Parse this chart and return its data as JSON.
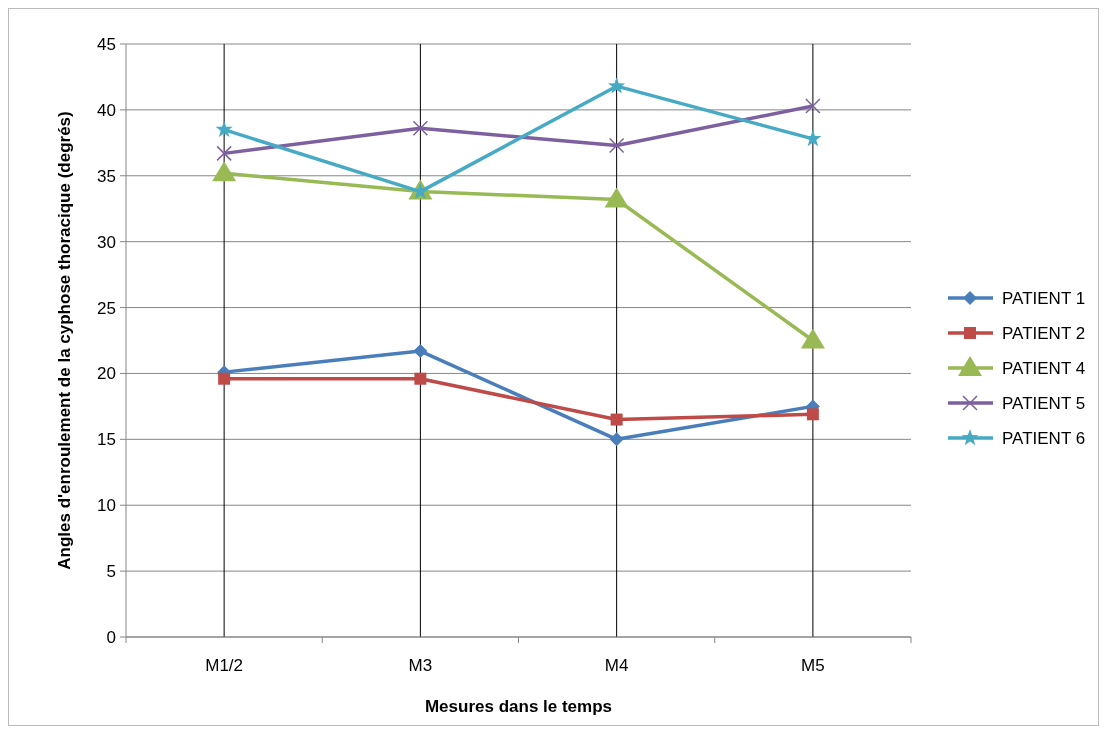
{
  "chart_data": {
    "type": "line",
    "xlabel": "Mesures dans le temps",
    "ylabel": "Angles d'enroulement de la cyphose thoracique (degrés)",
    "categories": [
      "M1/2",
      "M3",
      "M4",
      "M5"
    ],
    "ylim": [
      0,
      45
    ],
    "yticks": [
      0,
      5,
      10,
      15,
      20,
      25,
      30,
      35,
      40,
      45
    ],
    "grid": true,
    "legend": "right",
    "line_style": "solid",
    "series": [
      {
        "name": "PATIENT 1",
        "color": "#4a7ebb",
        "marker": "diamond",
        "values": [
          20.1,
          21.7,
          15.0,
          17.5
        ]
      },
      {
        "name": "PATIENT 2",
        "color": "#be4b48",
        "marker": "square",
        "values": [
          19.6,
          19.6,
          16.5,
          16.9
        ]
      },
      {
        "name": "PATIENT 4",
        "color": "#98b954",
        "marker": "triangle",
        "values": [
          35.2,
          33.8,
          33.2,
          22.5
        ]
      },
      {
        "name": "PATIENT 5",
        "color": "#7d60a0",
        "marker": "cross",
        "values": [
          36.7,
          38.6,
          37.3,
          40.3
        ]
      },
      {
        "name": "PATIENT 6",
        "color": "#46aac5",
        "marker": "star",
        "values": [
          38.5,
          33.8,
          41.8,
          37.8
        ]
      }
    ]
  }
}
